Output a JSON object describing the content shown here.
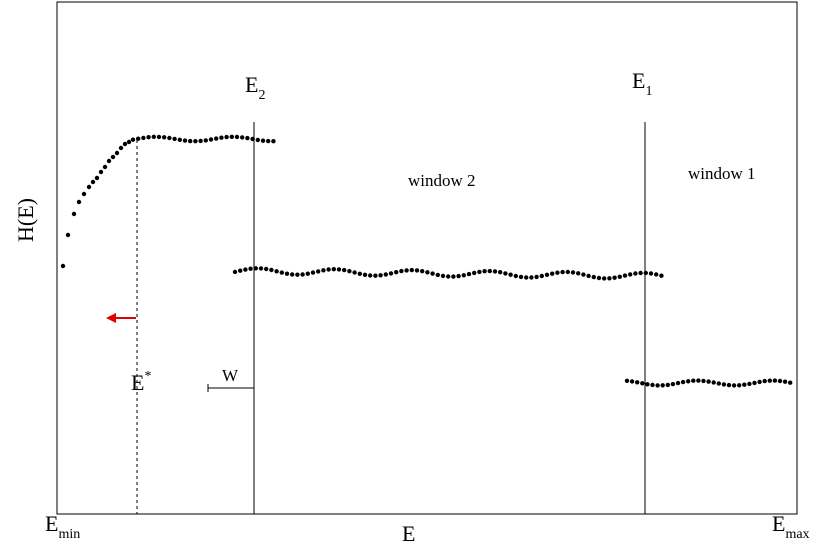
{
  "axes": {
    "y_label": "H(E)",
    "x_label": "E",
    "x_min_label": {
      "main": "E",
      "sub": "min"
    },
    "x_max_label": {
      "main": "E",
      "sub": "max"
    }
  },
  "markers": {
    "e2": {
      "main": "E",
      "sub": "2"
    },
    "e1": {
      "main": "E",
      "sub": "1"
    },
    "e_star": {
      "main": "E",
      "sup": "*"
    }
  },
  "labels": {
    "window2": "window 2",
    "window1": "window 1",
    "w": "W"
  },
  "colors": {
    "arrow": "#e00000",
    "ink": "#000000"
  }
}
